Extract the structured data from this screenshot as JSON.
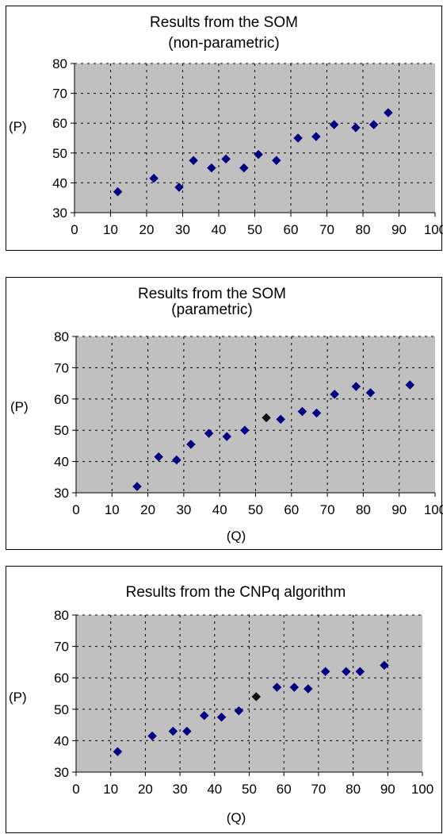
{
  "chart_data": [
    {
      "type": "scatter",
      "title": "Results from the SOM",
      "subtitle": "(non-parametric)",
      "xlabel": "",
      "ylabel": "(P)",
      "xlim": [
        0,
        100
      ],
      "ylim": [
        30,
        80
      ],
      "xticks": [
        0,
        10,
        20,
        30,
        40,
        50,
        60,
        70,
        80,
        90,
        100
      ],
      "yticks": [
        30,
        40,
        50,
        60,
        70,
        80
      ],
      "grid": true,
      "marker_color": "#000080",
      "plot_background": "#c0c0c0",
      "points": [
        {
          "x": 12,
          "y": 37
        },
        {
          "x": 22,
          "y": 41.5
        },
        {
          "x": 29,
          "y": 38.5
        },
        {
          "x": 33,
          "y": 47.5
        },
        {
          "x": 38,
          "y": 45
        },
        {
          "x": 42,
          "y": 48
        },
        {
          "x": 47,
          "y": 45
        },
        {
          "x": 51,
          "y": 49.5
        },
        {
          "x": 56,
          "y": 47.5
        },
        {
          "x": 62,
          "y": 55
        },
        {
          "x": 67,
          "y": 55.5
        },
        {
          "x": 72,
          "y": 59.5
        },
        {
          "x": 78,
          "y": 58.5
        },
        {
          "x": 83,
          "y": 59.5
        },
        {
          "x": 87,
          "y": 63.5
        }
      ]
    },
    {
      "type": "scatter",
      "title": "Results from the SOM",
      "subtitle": "(parametric)",
      "xlabel": "(Q)",
      "ylabel": "(P)",
      "xlim": [
        0,
        100
      ],
      "ylim": [
        30,
        80
      ],
      "xticks": [
        0,
        10,
        20,
        30,
        40,
        50,
        60,
        70,
        80,
        90,
        100
      ],
      "yticks": [
        30,
        40,
        50,
        60,
        70,
        80
      ],
      "grid": true,
      "marker_color": "#000080",
      "highlight_color": "#101010",
      "plot_background": "#c0c0c0",
      "points": [
        {
          "x": 17,
          "y": 32
        },
        {
          "x": 23,
          "y": 41.5
        },
        {
          "x": 28,
          "y": 40.5
        },
        {
          "x": 32,
          "y": 45.5
        },
        {
          "x": 37,
          "y": 49
        },
        {
          "x": 42,
          "y": 48
        },
        {
          "x": 47,
          "y": 50
        },
        {
          "x": 53,
          "y": 54,
          "highlight": true
        },
        {
          "x": 57,
          "y": 53.5
        },
        {
          "x": 63,
          "y": 56
        },
        {
          "x": 67,
          "y": 55.5
        },
        {
          "x": 72,
          "y": 61.5
        },
        {
          "x": 78,
          "y": 64
        },
        {
          "x": 82,
          "y": 62
        },
        {
          "x": 93,
          "y": 64.5
        }
      ]
    },
    {
      "type": "scatter",
      "title": "Results from the CNPq algorithm",
      "subtitle": "",
      "xlabel": "(Q)",
      "ylabel": "(P)",
      "xlim": [
        0,
        100
      ],
      "ylim": [
        30,
        80
      ],
      "xticks": [
        0,
        10,
        20,
        30,
        40,
        50,
        60,
        70,
        80,
        90,
        100
      ],
      "yticks": [
        30,
        40,
        50,
        60,
        70,
        80
      ],
      "grid": true,
      "marker_color": "#000080",
      "highlight_color": "#101010",
      "plot_background": "#c0c0c0",
      "points": [
        {
          "x": 12,
          "y": 36.5
        },
        {
          "x": 22,
          "y": 41.5
        },
        {
          "x": 28,
          "y": 43
        },
        {
          "x": 32,
          "y": 43
        },
        {
          "x": 37,
          "y": 48
        },
        {
          "x": 42,
          "y": 47.5
        },
        {
          "x": 47,
          "y": 49.5
        },
        {
          "x": 52,
          "y": 54,
          "highlight": true
        },
        {
          "x": 58,
          "y": 57
        },
        {
          "x": 63,
          "y": 57
        },
        {
          "x": 67,
          "y": 56.5
        },
        {
          "x": 72,
          "y": 62
        },
        {
          "x": 78,
          "y": 62
        },
        {
          "x": 82,
          "y": 62
        },
        {
          "x": 89,
          "y": 64
        }
      ]
    }
  ]
}
